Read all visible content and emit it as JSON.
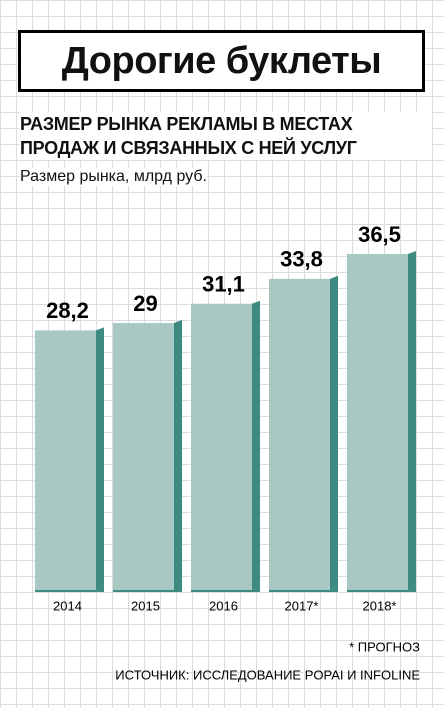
{
  "chart_data": {
    "type": "bar",
    "title": "Дорогие буклеты",
    "subtitle": "РАЗМЕР РЫНКА РЕКЛАМЫ В МЕСТАХ ПРОДАЖ И СВЯЗАННЫХ С НЕЙ УСЛУГ",
    "y_label": "Размер рынка, млрд руб.",
    "categories": [
      "2014",
      "2015",
      "2016",
      "2017*",
      "2018*"
    ],
    "values": [
      28.2,
      29,
      31.1,
      33.8,
      36.5
    ],
    "value_labels": [
      "28,2",
      "29",
      "31,1",
      "33,8",
      "36,5"
    ],
    "color": "#a8c8c4",
    "side_color": "#3d8a80",
    "footnote": "* ПРОГНОЗ",
    "source": "ИСТОЧНИК: ИССЛЕДОВАНИЕ POPAI И INFOLINE"
  }
}
